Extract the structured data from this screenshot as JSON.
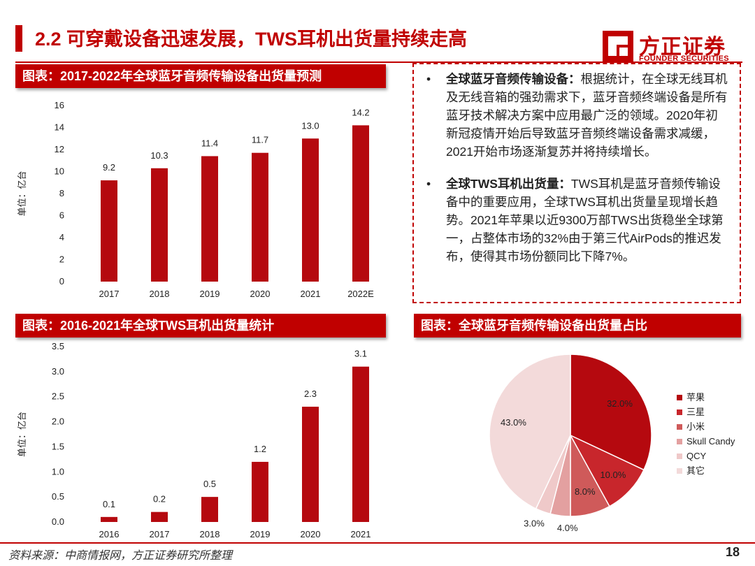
{
  "header": {
    "title": "2.2 可穿戴设备迅速发展，TWS耳机出货量持续走高",
    "logo_cn": "方正证券",
    "logo_en": "FOUNDER SECURITIES"
  },
  "colors": {
    "brand": "#c00000",
    "bar": "#b5090f",
    "text": "#222222"
  },
  "charts": {
    "chart1_title": "图表：2017-2022年全球蓝牙音频传输设备出货量预测",
    "chart2_title": "图表：2016-2021年全球TWS耳机出货量统计",
    "chart3_title": "图表：全球蓝牙音频传输设备出货量占比"
  },
  "chart_data": [
    {
      "type": "bar",
      "title": "图表：2017-2022年全球蓝牙音频传输设备出货量预测",
      "categories": [
        "2017",
        "2018",
        "2019",
        "2020",
        "2021",
        "2022E"
      ],
      "values": [
        9.2,
        10.3,
        11.4,
        11.7,
        13.0,
        14.2
      ],
      "value_labels": [
        "9.2",
        "10.3",
        "11.4",
        "11.7",
        "13.0",
        "14.2"
      ],
      "ylabel": "单位：亿台",
      "ylim": [
        0,
        16
      ],
      "yticks": [
        "0",
        "2",
        "4",
        "6",
        "8",
        "10",
        "12",
        "14",
        "16"
      ],
      "grid": false,
      "color": "#b5090f"
    },
    {
      "type": "bar",
      "title": "图表：2016-2021年全球TWS耳机出货量统计",
      "categories": [
        "2016",
        "2017",
        "2018",
        "2019",
        "2020",
        "2021"
      ],
      "values": [
        0.1,
        0.2,
        0.5,
        1.2,
        2.3,
        3.1
      ],
      "value_labels": [
        "0.1",
        "0.2",
        "0.5",
        "1.2",
        "2.3",
        "3.1"
      ],
      "ylabel": "单位：亿台",
      "ylim": [
        0,
        3.5
      ],
      "yticks": [
        "0.0",
        "0.5",
        "1.0",
        "1.5",
        "2.0",
        "2.5",
        "3.0",
        "3.5"
      ],
      "grid": false,
      "color": "#b5090f"
    },
    {
      "type": "pie",
      "title": "图表：全球蓝牙音频传输设备出货量占比",
      "labels": [
        "苹果",
        "三星",
        "小米",
        "Skull Candy",
        "QCY",
        "其它"
      ],
      "values": [
        32.0,
        10.0,
        8.0,
        4.0,
        3.0,
        43.0
      ],
      "value_labels": [
        "32.0%",
        "10.0%",
        "8.0%",
        "4.0%",
        "3.0%",
        "43.0%"
      ],
      "colors": [
        "#b5090f",
        "#c8262c",
        "#cf5a5a",
        "#e3a0a0",
        "#efc9c9",
        "#f3dada"
      ],
      "legend_position": "right"
    }
  ],
  "bullets": [
    {
      "bullet": "•",
      "bold": "全球蓝牙音频传输设备：",
      "text": "根据统计，在全球无线耳机及无线音箱的强劲需求下，蓝牙音频终端设备是所有蓝牙技术解决方案中应用最广泛的领域。2020年初新冠疫情开始后导致蓝牙音频终端设备需求减缓，2021开始市场逐渐复苏并将持续增长。"
    },
    {
      "bullet": "•",
      "bold": "全球TWS耳机出货量：",
      "text": "TWS耳机是蓝牙音频传输设备中的重要应用，全球TWS耳机出货量呈现增长趋势。2021年苹果以近9300万部TWS出货稳坐全球第一，占整体市场的32%由于第三代AirPods的推迟发布，使得其市场份额同比下降7%。"
    }
  ],
  "footer": {
    "source": "资料来源：中商情报网，方正证券研究所整理",
    "page": "18"
  }
}
